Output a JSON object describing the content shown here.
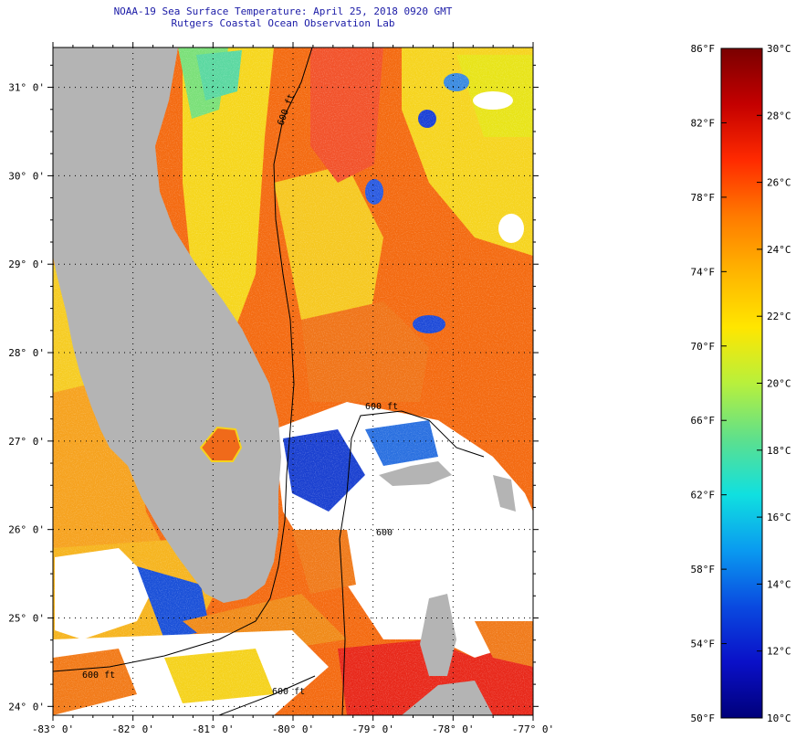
{
  "header": {
    "title": "NOAA-19 Sea Surface Temperature:  April 25, 2018 0920 GMT",
    "subtitle": "Rutgers Coastal Ocean Observation Lab"
  },
  "map": {
    "lon_range": [
      -83,
      -77
    ],
    "lat_range": [
      23.9,
      31.45
    ],
    "lat_ticks": [
      {
        "value": 31,
        "label": "31° 0'"
      },
      {
        "value": 30,
        "label": "30° 0'"
      },
      {
        "value": 29,
        "label": "29° 0'"
      },
      {
        "value": 28,
        "label": "28° 0'"
      },
      {
        "value": 27,
        "label": "27° 0'"
      },
      {
        "value": 26,
        "label": "26° 0'"
      },
      {
        "value": 25,
        "label": "25° 0'"
      },
      {
        "value": 24,
        "label": "24° 0'"
      }
    ],
    "lon_ticks": [
      {
        "value": -83,
        "label": "-83° 0'"
      },
      {
        "value": -82,
        "label": "-82° 0'"
      },
      {
        "value": -81,
        "label": "-81° 0'"
      },
      {
        "value": -80,
        "label": "-80° 0'"
      },
      {
        "value": -79,
        "label": "-79° 0'"
      },
      {
        "value": -78,
        "label": "-78° 0'"
      },
      {
        "value": -77,
        "label": "-77° 0'"
      }
    ],
    "contour_labels": [
      "600 ft",
      "600 ft",
      "600",
      "600 ft",
      "600 ft"
    ],
    "colors": {
      "land": "#b4b4b4",
      "cloud": "#ffffff",
      "ocean_warm": "#f46a10",
      "ocean_mid": "#f6d61c",
      "ocean_cool": "#62e08c",
      "ocean_cold": "#1636d6"
    }
  },
  "colorbar": {
    "colors": [
      "#7a0000",
      "#c40000",
      "#ff2a00",
      "#ff7a00",
      "#ffb400",
      "#ffe600",
      "#b8f03c",
      "#5ee08c",
      "#10e0e0",
      "#0a9af0",
      "#0a4ae0",
      "#0a10c8",
      "#00007a"
    ],
    "f_labels": [
      "86°F",
      "82°F",
      "78°F",
      "74°F",
      "70°F",
      "66°F",
      "62°F",
      "58°F",
      "54°F",
      "50°F"
    ],
    "c_labels": [
      "30°C",
      "28°C",
      "26°C",
      "24°C",
      "22°C",
      "20°C",
      "18°C",
      "16°C",
      "14°C",
      "12°C",
      "10°C"
    ]
  }
}
